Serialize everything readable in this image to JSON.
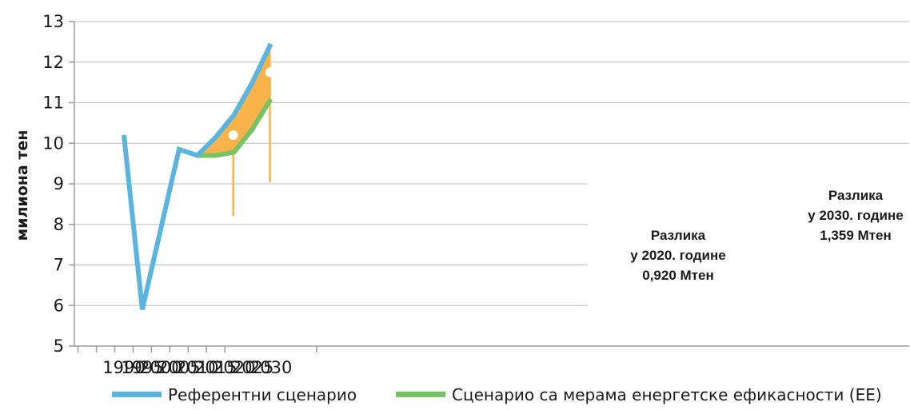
{
  "chart_data": {
    "type": "line",
    "xlabel": "",
    "ylabel": "милиона тен",
    "ylim": [
      5,
      13
    ],
    "x_ticks": [
      "1990",
      "1995",
      "2000",
      "2005",
      "2010",
      "2015",
      "2020",
      "2025",
      "2030"
    ],
    "y_ticks": [
      "5",
      "6",
      "7",
      "8",
      "9",
      "10",
      "11",
      "12",
      "13"
    ],
    "grid": "horizontal",
    "legend_position": "bottom",
    "series": [
      {
        "name": "Референтни сценарио",
        "color": "#5ab4e0",
        "x": [
          1990,
          1995,
          2005,
          2010,
          2015,
          2020,
          2025,
          2030
        ],
        "values": [
          10.2,
          5.9,
          9.85,
          9.7,
          10.15,
          10.7,
          11.5,
          12.45
        ]
      },
      {
        "name": "Сценарио са мерама енергетске ефикасности (ЕЕ)",
        "color": "#78c266",
        "x": [
          2010,
          2015,
          2020,
          2025,
          2030
        ],
        "values": [
          9.7,
          9.7,
          9.78,
          10.35,
          11.09
        ]
      }
    ],
    "fill_between": {
      "color": "#f9b249",
      "from_x": 2010,
      "to_x": 2030
    },
    "markers": [
      {
        "x": 2020,
        "y": 10.2,
        "color": "#ffffff"
      },
      {
        "x": 2030,
        "y": 11.75,
        "color": "#ffffff"
      }
    ],
    "annotations": [
      {
        "x": 2020,
        "lines": [
          "Разлика",
          "у 2020. године",
          "0,920 Мтен"
        ]
      },
      {
        "x": 2030,
        "lines": [
          "Разлика",
          "у 2030. године",
          "1,359 Мтен"
        ]
      }
    ],
    "leader_color": "#f9b249"
  }
}
